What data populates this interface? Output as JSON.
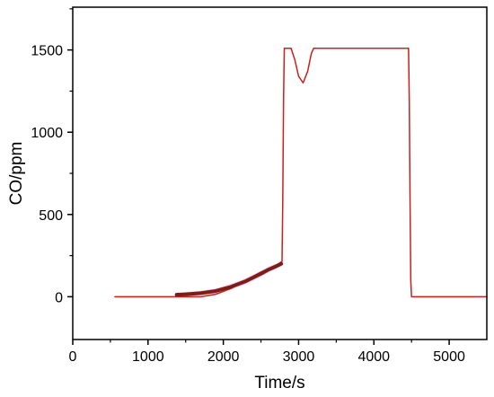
{
  "chart_data": {
    "type": "line",
    "title": "",
    "xlabel": "Time/s",
    "ylabel": "CO/ppm",
    "xlim": [
      0,
      5500
    ],
    "ylim": [
      -260,
      1760
    ],
    "x_ticks": [
      0,
      1000,
      2000,
      3000,
      4000,
      5000
    ],
    "x_tick_labels": [
      "0",
      "1000",
      "2000",
      "3000",
      "4000",
      "5000"
    ],
    "y_ticks": [
      0,
      500,
      1000,
      1500
    ],
    "y_tick_labels": [
      "0",
      "500",
      "1000",
      "1500"
    ],
    "grid": false,
    "legend": "none",
    "series": [
      {
        "color": "#cc1f1f",
        "x": [
          560,
          1400,
          1700,
          1900,
          2100,
          2300,
          2500,
          2700,
          2780,
          2790,
          2800,
          2810,
          2900,
          2950,
          3000,
          3060,
          3120,
          3170,
          3200,
          3300,
          3600,
          4000,
          4460,
          4470,
          4480,
          4490,
          4500,
          4600,
          5000,
          5500
        ],
        "y": [
          0,
          0,
          0,
          15,
          50,
          100,
          150,
          190,
          215,
          600,
          1200,
          1510,
          1510,
          1440,
          1340,
          1300,
          1370,
          1480,
          1510,
          1510,
          1510,
          1510,
          1510,
          1200,
          600,
          100,
          0,
          0,
          0,
          0
        ]
      },
      {
        "color": "#7a1f12",
        "x": [
          1380,
          1500,
          1700,
          1900,
          2100,
          2300,
          2500,
          2600,
          2700,
          2770
        ],
        "y": [
          12,
          15,
          22,
          35,
          60,
          95,
          140,
          165,
          185,
          200
        ]
      }
    ],
    "line_widths": [
      1.5,
      4
    ],
    "band": {
      "color": "#e040fb",
      "x": [
        1380,
        1500,
        1700,
        1900,
        2100,
        2300,
        2500,
        2600,
        2700,
        2770
      ],
      "y_low": [
        0,
        3,
        8,
        20,
        43,
        78,
        122,
        148,
        170,
        185
      ],
      "y_high": [
        24,
        28,
        36,
        50,
        77,
        112,
        158,
        183,
        200,
        215
      ]
    }
  }
}
